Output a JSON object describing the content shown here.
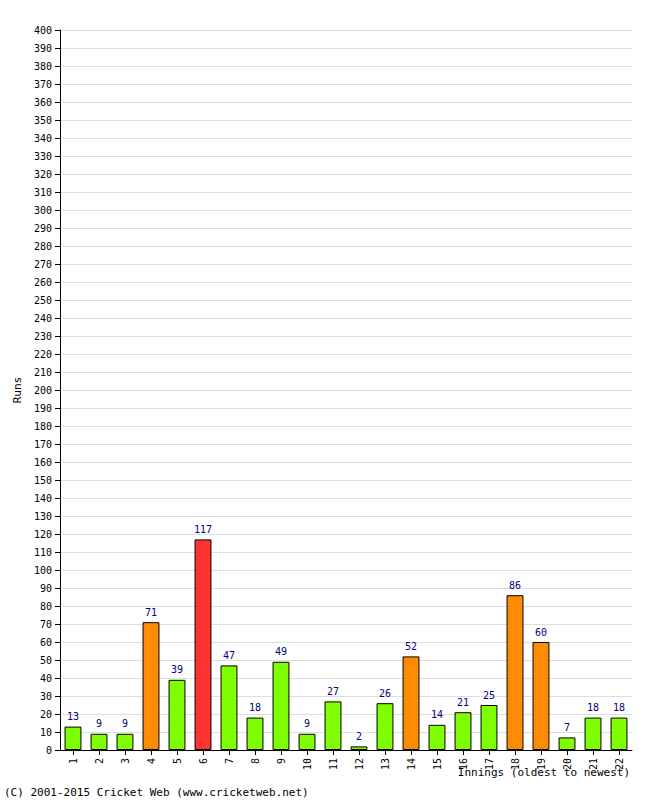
{
  "chart_data": {
    "type": "bar",
    "categories": [
      "1",
      "2",
      "3",
      "4",
      "5",
      "6",
      "7",
      "8",
      "9",
      "10",
      "11",
      "12",
      "13",
      "14",
      "15",
      "16",
      "17",
      "18",
      "19",
      "20",
      "21",
      "22"
    ],
    "values": [
      13,
      9,
      9,
      71,
      39,
      117,
      47,
      18,
      49,
      9,
      27,
      2,
      26,
      52,
      14,
      21,
      25,
      86,
      60,
      7,
      18,
      18
    ],
    "colors": [
      "#80ff00",
      "#80ff00",
      "#80ff00",
      "#ff8c00",
      "#80ff00",
      "#ff3333",
      "#80ff00",
      "#80ff00",
      "#80ff00",
      "#80ff00",
      "#80ff00",
      "#80ff00",
      "#80ff00",
      "#ff8c00",
      "#80ff00",
      "#80ff00",
      "#80ff00",
      "#ff8c00",
      "#ff8c00",
      "#80ff00",
      "#80ff00",
      "#80ff00"
    ],
    "xlabel": "Innings (oldest to newest)",
    "ylabel": "Runs",
    "annotations": [
      "(C) 2001-2015 Cricket Web (www.cricketweb.net)"
    ],
    "ylim": [
      0,
      400
    ],
    "yticks": [
      0,
      10,
      20,
      30,
      40,
      50,
      60,
      70,
      80,
      90,
      100,
      110,
      120,
      130,
      140,
      150,
      160,
      170,
      180,
      190,
      200,
      210,
      220,
      230,
      240,
      250,
      260,
      270,
      280,
      290,
      300,
      310,
      320,
      330,
      340,
      350,
      360,
      370,
      380,
      390,
      400
    ],
    "grid": true,
    "data_labels": true
  }
}
